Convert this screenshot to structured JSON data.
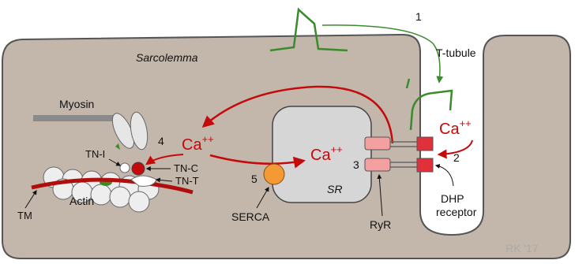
{
  "labels": {
    "step_1": "1",
    "t_tubule": "T-tubule",
    "sarcolemma": "Sarcolemma",
    "myosin": "Myosin",
    "step_4": "4",
    "ca_cytosol": {
      "text": "Ca",
      "sup": "++"
    },
    "tn_i": "TN-I",
    "tn_c": "TN-C",
    "tn_t": "TN-T",
    "tm": "TM",
    "actin": "Actin",
    "step_5": "5",
    "serca": "SERCA",
    "ca_sr": {
      "text": "Ca",
      "sup": "++"
    },
    "sr": "SR",
    "step_3": "3",
    "ryr": "RyR",
    "ca_tubule": {
      "text": "Ca",
      "sup": "++"
    },
    "step_2": "2",
    "dhp_receptor": [
      "DHP",
      "receptor"
    ],
    "signature": "RK '17"
  }
}
